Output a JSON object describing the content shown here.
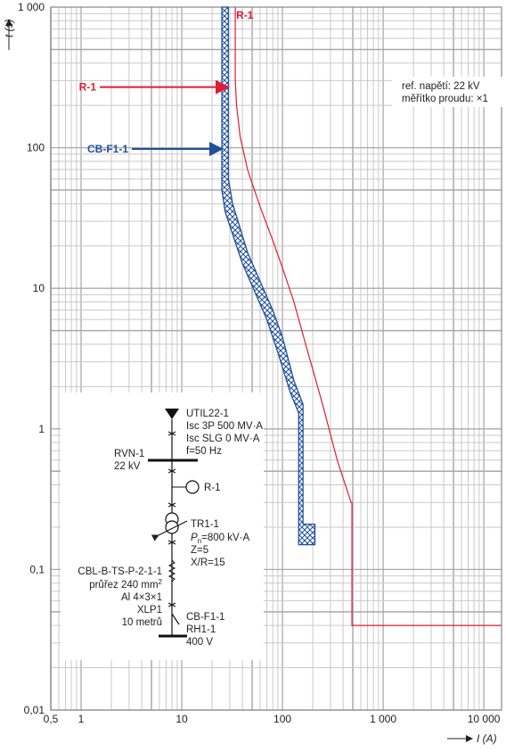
{
  "chart_data": {
    "type": "line",
    "xscale": "log",
    "yscale": "log",
    "xlim": [
      0.5,
      15000
    ],
    "ylim": [
      0.01,
      1000
    ],
    "grid": true,
    "ylabel": "t (s)",
    "xlabel": "I (A)",
    "xticks": [
      {
        "v": 0.5,
        "t": "0,5"
      },
      {
        "v": 1,
        "t": "1"
      },
      {
        "v": 10,
        "t": "10"
      },
      {
        "v": 100,
        "t": "100"
      },
      {
        "v": 1000,
        "t": "1 000"
      },
      {
        "v": 10000,
        "t": "10 000"
      }
    ],
    "yticks": [
      {
        "v": 1000,
        "t": "1 000"
      },
      {
        "v": 100,
        "t": "100"
      },
      {
        "v": 10,
        "t": "10"
      },
      {
        "v": 1,
        "t": "1"
      },
      {
        "v": 0.1,
        "t": "0,1"
      },
      {
        "v": 0.01,
        "t": "0,01"
      }
    ],
    "annotation": [
      "ref. napětí: 22 kV",
      "měřítko proudu: ×1"
    ],
    "colors": {
      "r1": "#e01c36",
      "cbf1": "#1f4f9a",
      "grid": "#c9c9c9",
      "grid_major": "#a9a9a9"
    },
    "series": [
      {
        "name": "R-1",
        "color": "#e01c36",
        "x": [
          34,
          34,
          35,
          38,
          45,
          60,
          80,
          100,
          130,
          170,
          250,
          350,
          480,
          490,
          490,
          15000
        ],
        "y": [
          1000,
          300,
          200,
          120,
          70,
          38,
          22,
          14,
          8,
          4,
          1.5,
          0.6,
          0.3,
          0.3,
          0.04,
          0.04
        ]
      },
      {
        "name": "CB-F1-1",
        "color": "#1f4f9a",
        "band_upper": {
          "x": [
            29,
            29,
            32,
            45,
            80,
            100,
            130,
            160,
            160,
            210,
            210
          ],
          "y": [
            1000,
            60,
            40,
            18,
            7,
            4.5,
            2.2,
            1.5,
            0.21,
            0.21,
            0.15
          ]
        },
        "band_lower": {
          "x": [
            25,
            25,
            27,
            40,
            70,
            90,
            120,
            145,
            145,
            210
          ],
          "y": [
            1000,
            50,
            35,
            15,
            6,
            3.5,
            1.8,
            1.3,
            0.15,
            0.15
          ]
        }
      }
    ],
    "callouts": [
      {
        "label": "R-1",
        "x": 30,
        "y": 270,
        "color": "#e01c36"
      },
      {
        "label": "CB-F1-1",
        "x": 26,
        "y": 98,
        "color": "#1f4f9a"
      }
    ],
    "curve_top_label": "R-1",
    "schematic": {
      "util": [
        "UTIL22-1",
        "Isc 3P 500 MV·A",
        "Isc SLG 0 MV·A",
        "f=50 Hz"
      ],
      "bus": [
        "RVN-1",
        "22 kV"
      ],
      "relay": "R-1",
      "transformer_name": "TR1-1",
      "transformer_pn": "=800 kV·A",
      "transformer_p": "P",
      "transformer_sub": "n",
      "transformer_z": "Z=5",
      "transformer_xr": "X/R=15",
      "cable": [
        "CBL-B-TS-P-2-1-1",
        "průřez 240 mm",
        "Al 4×3×1",
        "XLP1",
        "10 metrů"
      ],
      "cable_sup": "2",
      "breaker": [
        "CB-F1-1",
        "RH1-1",
        "400 V"
      ]
    }
  }
}
